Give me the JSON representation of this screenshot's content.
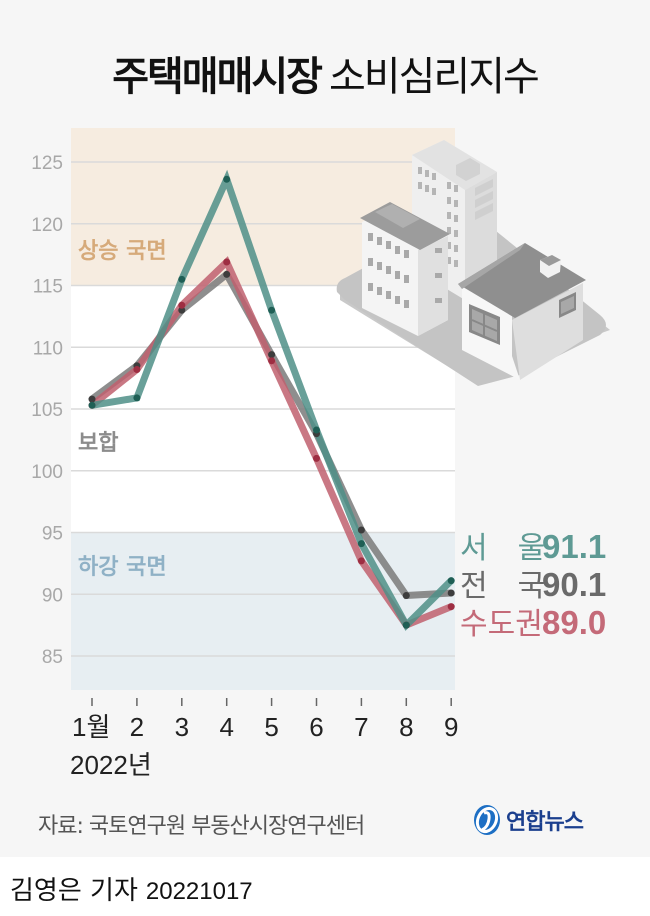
{
  "header": {
    "title_bold": "주택매매시장",
    "title_light": "소비심리지수"
  },
  "zones": {
    "rise": {
      "label": "상승 국면",
      "color": "#d6aa7a",
      "bg": "#f6ece0"
    },
    "neutral": {
      "label": "보합",
      "color": "#8c8c8c",
      "bg": "#ffffff"
    },
    "fall": {
      "label": "하강 국면",
      "color": "#8fb1c6",
      "bg": "#e7eef2"
    }
  },
  "legend": [
    {
      "label": "서　울",
      "value": "91.1",
      "color": "#5e9a94"
    },
    {
      "label": "전　국",
      "value": "90.1",
      "color": "#6a6a6a"
    },
    {
      "label": "수도권",
      "value": "89.0",
      "color": "#c46a78"
    }
  ],
  "x_axis": {
    "year_label": "2022년"
  },
  "source": "자료: 국토연구원 부동산시장연구센터",
  "logo": {
    "text": "연합뉴스"
  },
  "byline": {
    "author": "김영은 기자",
    "date": "20221017"
  },
  "chart_data": {
    "type": "line",
    "title": "주택매매시장 소비심리지수",
    "xlabel": "2022년",
    "ylabel": "",
    "categories": [
      "1월",
      "2",
      "3",
      "4",
      "5",
      "6",
      "7",
      "8",
      "9"
    ],
    "yticks": [
      125,
      120,
      115,
      110,
      105,
      100,
      95,
      90,
      85
    ],
    "ylim": [
      82.3,
      127.9
    ],
    "grid": true,
    "legend_position": "right",
    "bands": [
      {
        "label": "상승 국면",
        "from": 115,
        "to": 127.9
      },
      {
        "label": "보합",
        "from": 95,
        "to": 115
      },
      {
        "label": "하강 국면",
        "from": 82.3,
        "to": 95
      }
    ],
    "series": [
      {
        "name": "전국",
        "color": "#7a7a7a",
        "values": [
          105.8,
          108.5,
          113.0,
          115.9,
          109.4,
          103.0,
          95.2,
          89.9,
          90.1
        ]
      },
      {
        "name": "수도권",
        "color": "#c0606f",
        "values": [
          105.3,
          108.2,
          113.4,
          116.9,
          108.9,
          101.0,
          92.7,
          87.5,
          89.0
        ]
      },
      {
        "name": "서울",
        "color": "#4f8f87",
        "values": [
          105.3,
          105.9,
          115.5,
          123.6,
          113.0,
          103.3,
          94.1,
          87.5,
          91.1
        ]
      }
    ]
  }
}
